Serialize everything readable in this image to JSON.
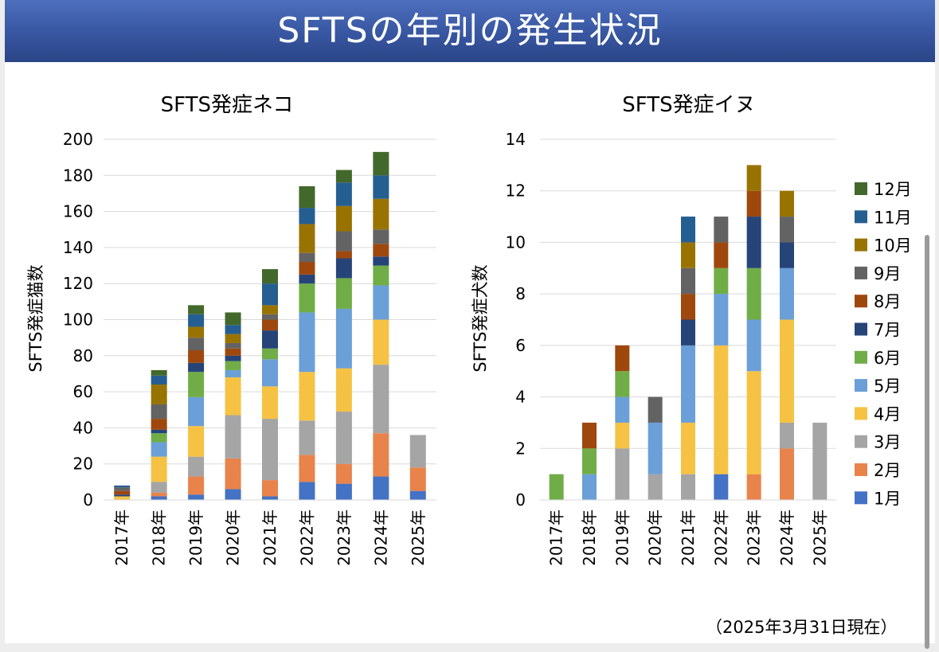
{
  "header": {
    "title": "SFTSの年別の発生状況"
  },
  "footnote": "（2025年3月31日現在）",
  "months": [
    "1月",
    "2月",
    "3月",
    "4月",
    "5月",
    "6月",
    "7月",
    "8月",
    "9月",
    "10月",
    "11月",
    "12月"
  ],
  "colors": [
    "#4472c4",
    "#e8834b",
    "#a5a5a5",
    "#f5c243",
    "#6b9fd7",
    "#70ad47",
    "#264478",
    "#9e480e",
    "#636363",
    "#997300",
    "#255e91",
    "#43682b"
  ],
  "chart_data": [
    {
      "type": "bar",
      "stacked": true,
      "title": "SFTS発症ネコ",
      "ylabel": "SFTS発症猫数",
      "xlabel": "",
      "ylim": [
        0,
        200
      ],
      "yticks": [
        0,
        20,
        40,
        60,
        80,
        100,
        120,
        140,
        160,
        180,
        200
      ],
      "categories": [
        "2017年",
        "2018年",
        "2019年",
        "2020年",
        "2021年",
        "2022年",
        "2023年",
        "2024年",
        "2025年"
      ],
      "grid": true,
      "series": [
        {
          "name": "1月",
          "values": [
            0,
            2,
            3,
            6,
            2,
            10,
            9,
            13,
            5
          ]
        },
        {
          "name": "2月",
          "values": [
            0,
            2,
            10,
            17,
            9,
            15,
            11,
            24,
            13
          ]
        },
        {
          "name": "3月",
          "values": [
            0,
            6,
            11,
            24,
            34,
            19,
            29,
            38,
            18
          ]
        },
        {
          "name": "4月",
          "values": [
            2,
            14,
            17,
            21,
            18,
            27,
            24,
            25,
            0
          ]
        },
        {
          "name": "5月",
          "values": [
            0,
            8,
            16,
            4,
            15,
            33,
            33,
            19,
            0
          ]
        },
        {
          "name": "6月",
          "values": [
            0,
            5,
            14,
            5,
            6,
            16,
            17,
            11,
            0
          ]
        },
        {
          "name": "7月",
          "values": [
            1,
            2,
            5,
            3,
            10,
            5,
            11,
            5,
            0
          ]
        },
        {
          "name": "8月",
          "values": [
            2,
            6,
            7,
            4,
            6,
            7,
            4,
            7,
            0
          ]
        },
        {
          "name": "9月",
          "values": [
            2,
            8,
            7,
            3,
            3,
            5,
            11,
            8,
            0
          ]
        },
        {
          "name": "10月",
          "values": [
            0,
            11,
            6,
            5,
            5,
            16,
            14,
            17,
            0
          ]
        },
        {
          "name": "11月",
          "values": [
            1,
            5,
            7,
            5,
            12,
            9,
            13,
            13,
            0
          ]
        },
        {
          "name": "12月",
          "values": [
            0,
            3,
            5,
            7,
            8,
            12,
            7,
            13,
            0
          ]
        }
      ]
    },
    {
      "type": "bar",
      "stacked": true,
      "title": "SFTS発症イヌ",
      "ylabel": "SFTS発症犬数",
      "xlabel": "",
      "ylim": [
        0,
        14
      ],
      "yticks": [
        0,
        2,
        4,
        6,
        8,
        10,
        12,
        14
      ],
      "categories": [
        "2017年",
        "2018年",
        "2019年",
        "2020年",
        "2021年",
        "2022年",
        "2023年",
        "2024年",
        "2025年"
      ],
      "grid": true,
      "legend": "right",
      "series": [
        {
          "name": "1月",
          "values": [
            0,
            0,
            0,
            0,
            0,
            1,
            0,
            0,
            0
          ]
        },
        {
          "name": "2月",
          "values": [
            0,
            0,
            0,
            0,
            0,
            0,
            1,
            2,
            0
          ]
        },
        {
          "name": "3月",
          "values": [
            0,
            0,
            2,
            1,
            1,
            0,
            0,
            1,
            3
          ]
        },
        {
          "name": "4月",
          "values": [
            0,
            0,
            1,
            0,
            2,
            5,
            4,
            4,
            0
          ]
        },
        {
          "name": "5月",
          "values": [
            0,
            1,
            1,
            2,
            3,
            2,
            2,
            2,
            0
          ]
        },
        {
          "name": "6月",
          "values": [
            1,
            1,
            1,
            0,
            0,
            1,
            2,
            0,
            0
          ]
        },
        {
          "name": "7月",
          "values": [
            0,
            0,
            0,
            0,
            1,
            0,
            2,
            1,
            0
          ]
        },
        {
          "name": "8月",
          "values": [
            0,
            1,
            1,
            0,
            1,
            1,
            1,
            0,
            0
          ]
        },
        {
          "name": "9月",
          "values": [
            0,
            0,
            0,
            1,
            1,
            1,
            0,
            1,
            0
          ]
        },
        {
          "name": "10月",
          "values": [
            0,
            0,
            0,
            0,
            1,
            0,
            1,
            1,
            0
          ]
        },
        {
          "name": "11月",
          "values": [
            0,
            0,
            0,
            0,
            1,
            0,
            0,
            0,
            0
          ]
        },
        {
          "name": "12月",
          "values": [
            0,
            0,
            0,
            0,
            0,
            0,
            0,
            0,
            0
          ]
        }
      ]
    }
  ]
}
